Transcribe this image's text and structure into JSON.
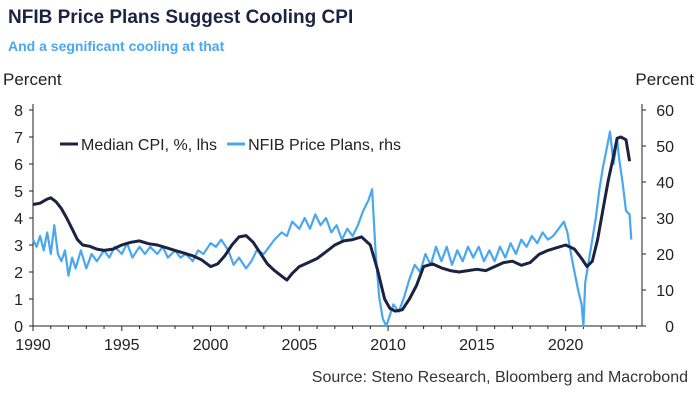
{
  "title": "NFIB Price Plans Suggest Cooling CPI",
  "subtitle": "And a segnificant cooling at that",
  "source": "Source: Steno Research, Bloomberg and Macrobond",
  "chart_data": {
    "type": "line",
    "left_axis": {
      "unit": "Percent",
      "ylim": [
        0,
        8
      ],
      "ticks": [
        0,
        1,
        2,
        3,
        4,
        5,
        6,
        7,
        8
      ]
    },
    "right_axis": {
      "unit": "Percent",
      "ylim": [
        0,
        60
      ],
      "ticks": [
        0,
        10,
        20,
        30,
        40,
        50,
        60
      ]
    },
    "x_axis": {
      "xlim": [
        1990,
        2024.3
      ],
      "ticks": [
        1990,
        1995,
        2000,
        2005,
        2010,
        2015,
        2020
      ]
    },
    "grid": false,
    "legend": "top-left",
    "series": [
      {
        "name": "Median CPI, %, lhs",
        "axis": "left",
        "color": "#1c2342",
        "points": [
          [
            1990.0,
            4.5
          ],
          [
            1990.4,
            4.55
          ],
          [
            1990.8,
            4.7
          ],
          [
            1991.0,
            4.75
          ],
          [
            1991.3,
            4.6
          ],
          [
            1991.6,
            4.35
          ],
          [
            1991.9,
            4.0
          ],
          [
            1992.2,
            3.6
          ],
          [
            1992.5,
            3.2
          ],
          [
            1992.8,
            3.0
          ],
          [
            1993.2,
            2.95
          ],
          [
            1993.6,
            2.85
          ],
          [
            1994.0,
            2.8
          ],
          [
            1994.5,
            2.85
          ],
          [
            1995.0,
            3.0
          ],
          [
            1995.5,
            3.1
          ],
          [
            1996.0,
            3.15
          ],
          [
            1996.5,
            3.05
          ],
          [
            1997.0,
            3.0
          ],
          [
            1997.5,
            2.9
          ],
          [
            1998.0,
            2.8
          ],
          [
            1998.5,
            2.7
          ],
          [
            1999.0,
            2.6
          ],
          [
            1999.5,
            2.45
          ],
          [
            2000.0,
            2.2
          ],
          [
            2000.4,
            2.3
          ],
          [
            2000.8,
            2.6
          ],
          [
            2001.2,
            3.0
          ],
          [
            2001.6,
            3.3
          ],
          [
            2002.0,
            3.35
          ],
          [
            2002.4,
            3.1
          ],
          [
            2002.8,
            2.7
          ],
          [
            2003.2,
            2.3
          ],
          [
            2003.6,
            2.05
          ],
          [
            2004.0,
            1.85
          ],
          [
            2004.3,
            1.7
          ],
          [
            2004.6,
            1.95
          ],
          [
            2005.0,
            2.2
          ],
          [
            2005.5,
            2.35
          ],
          [
            2006.0,
            2.5
          ],
          [
            2006.5,
            2.75
          ],
          [
            2007.0,
            3.0
          ],
          [
            2007.5,
            3.15
          ],
          [
            2008.0,
            3.2
          ],
          [
            2008.5,
            3.3
          ],
          [
            2009.0,
            3.0
          ],
          [
            2009.4,
            2.1
          ],
          [
            2009.8,
            1.0
          ],
          [
            2010.1,
            0.65
          ],
          [
            2010.4,
            0.55
          ],
          [
            2010.8,
            0.6
          ],
          [
            2011.2,
            1.0
          ],
          [
            2011.6,
            1.5
          ],
          [
            2012.0,
            2.2
          ],
          [
            2012.5,
            2.3
          ],
          [
            2013.0,
            2.15
          ],
          [
            2013.5,
            2.05
          ],
          [
            2014.0,
            2.0
          ],
          [
            2014.5,
            2.05
          ],
          [
            2015.0,
            2.1
          ],
          [
            2015.5,
            2.05
          ],
          [
            2016.0,
            2.2
          ],
          [
            2016.5,
            2.35
          ],
          [
            2017.0,
            2.4
          ],
          [
            2017.5,
            2.25
          ],
          [
            2018.0,
            2.35
          ],
          [
            2018.5,
            2.65
          ],
          [
            2019.0,
            2.8
          ],
          [
            2019.5,
            2.9
          ],
          [
            2020.0,
            3.0
          ],
          [
            2020.5,
            2.85
          ],
          [
            2020.9,
            2.5
          ],
          [
            2021.2,
            2.2
          ],
          [
            2021.5,
            2.4
          ],
          [
            2021.8,
            3.2
          ],
          [
            2022.1,
            4.3
          ],
          [
            2022.4,
            5.4
          ],
          [
            2022.7,
            6.3
          ],
          [
            2022.9,
            6.95
          ],
          [
            2023.1,
            7.0
          ],
          [
            2023.4,
            6.9
          ],
          [
            2023.6,
            6.1
          ]
        ]
      },
      {
        "name": "NFIB Price Plans, rhs",
        "axis": "right",
        "color": "#4aa7ef",
        "points": [
          [
            1990.0,
            24
          ],
          [
            1990.2,
            22
          ],
          [
            1990.4,
            25
          ],
          [
            1990.6,
            21
          ],
          [
            1990.8,
            26
          ],
          [
            1991.0,
            20
          ],
          [
            1991.2,
            28
          ],
          [
            1991.4,
            20
          ],
          [
            1991.6,
            18
          ],
          [
            1991.8,
            21
          ],
          [
            1992.0,
            14
          ],
          [
            1992.2,
            19
          ],
          [
            1992.4,
            16
          ],
          [
            1992.7,
            21
          ],
          [
            1993.0,
            16
          ],
          [
            1993.3,
            20
          ],
          [
            1993.6,
            18
          ],
          [
            1994.0,
            21
          ],
          [
            1994.3,
            19
          ],
          [
            1994.6,
            22
          ],
          [
            1995.0,
            20
          ],
          [
            1995.3,
            23
          ],
          [
            1995.6,
            19
          ],
          [
            1996.0,
            22
          ],
          [
            1996.3,
            20
          ],
          [
            1996.6,
            22
          ],
          [
            1997.0,
            20
          ],
          [
            1997.3,
            22
          ],
          [
            1997.6,
            19
          ],
          [
            1998.0,
            21
          ],
          [
            1998.3,
            19
          ],
          [
            1998.6,
            20
          ],
          [
            1999.0,
            18
          ],
          [
            1999.3,
            21
          ],
          [
            1999.6,
            20
          ],
          [
            2000.0,
            23
          ],
          [
            2000.3,
            22
          ],
          [
            2000.6,
            24
          ],
          [
            2001.0,
            21
          ],
          [
            2001.3,
            17
          ],
          [
            2001.6,
            19
          ],
          [
            2002.0,
            16
          ],
          [
            2002.3,
            18
          ],
          [
            2002.6,
            21
          ],
          [
            2003.0,
            20
          ],
          [
            2003.3,
            22
          ],
          [
            2003.6,
            24
          ],
          [
            2004.0,
            26
          ],
          [
            2004.3,
            25
          ],
          [
            2004.6,
            29
          ],
          [
            2005.0,
            27
          ],
          [
            2005.3,
            30
          ],
          [
            2005.6,
            27
          ],
          [
            2005.9,
            31
          ],
          [
            2006.2,
            28
          ],
          [
            2006.5,
            30
          ],
          [
            2006.8,
            26
          ],
          [
            2007.1,
            28
          ],
          [
            2007.4,
            24
          ],
          [
            2007.7,
            27
          ],
          [
            2008.0,
            25
          ],
          [
            2008.3,
            28
          ],
          [
            2008.6,
            32
          ],
          [
            2008.9,
            35
          ],
          [
            2009.1,
            38
          ],
          [
            2009.3,
            20
          ],
          [
            2009.5,
            8
          ],
          [
            2009.7,
            2
          ],
          [
            2009.9,
            0
          ],
          [
            2010.1,
            3
          ],
          [
            2010.3,
            6
          ],
          [
            2010.6,
            4
          ],
          [
            2010.9,
            8
          ],
          [
            2011.2,
            13
          ],
          [
            2011.5,
            17
          ],
          [
            2011.8,
            15
          ],
          [
            2012.1,
            20
          ],
          [
            2012.4,
            17
          ],
          [
            2012.7,
            22
          ],
          [
            2013.0,
            18
          ],
          [
            2013.3,
            22
          ],
          [
            2013.6,
            17
          ],
          [
            2013.9,
            21
          ],
          [
            2014.2,
            18
          ],
          [
            2014.5,
            22
          ],
          [
            2014.8,
            19
          ],
          [
            2015.1,
            22
          ],
          [
            2015.4,
            18
          ],
          [
            2015.7,
            21
          ],
          [
            2016.0,
            18
          ],
          [
            2016.3,
            22
          ],
          [
            2016.6,
            19
          ],
          [
            2016.9,
            23
          ],
          [
            2017.2,
            20
          ],
          [
            2017.5,
            24
          ],
          [
            2017.8,
            22
          ],
          [
            2018.1,
            25
          ],
          [
            2018.4,
            23
          ],
          [
            2018.7,
            26
          ],
          [
            2019.0,
            24
          ],
          [
            2019.3,
            25
          ],
          [
            2019.6,
            27
          ],
          [
            2019.9,
            29
          ],
          [
            2020.1,
            26
          ],
          [
            2020.3,
            20
          ],
          [
            2020.5,
            15
          ],
          [
            2020.7,
            10
          ],
          [
            2020.9,
            6
          ],
          [
            2021.0,
            0
          ],
          [
            2021.1,
            12
          ],
          [
            2021.3,
            18
          ],
          [
            2021.5,
            24
          ],
          [
            2021.7,
            30
          ],
          [
            2021.9,
            38
          ],
          [
            2022.1,
            44
          ],
          [
            2022.3,
            49
          ],
          [
            2022.5,
            54
          ],
          [
            2022.7,
            45
          ],
          [
            2022.9,
            52
          ],
          [
            2023.0,
            47
          ],
          [
            2023.2,
            40
          ],
          [
            2023.4,
            32
          ],
          [
            2023.6,
            31
          ],
          [
            2023.7,
            24
          ]
        ]
      }
    ]
  }
}
